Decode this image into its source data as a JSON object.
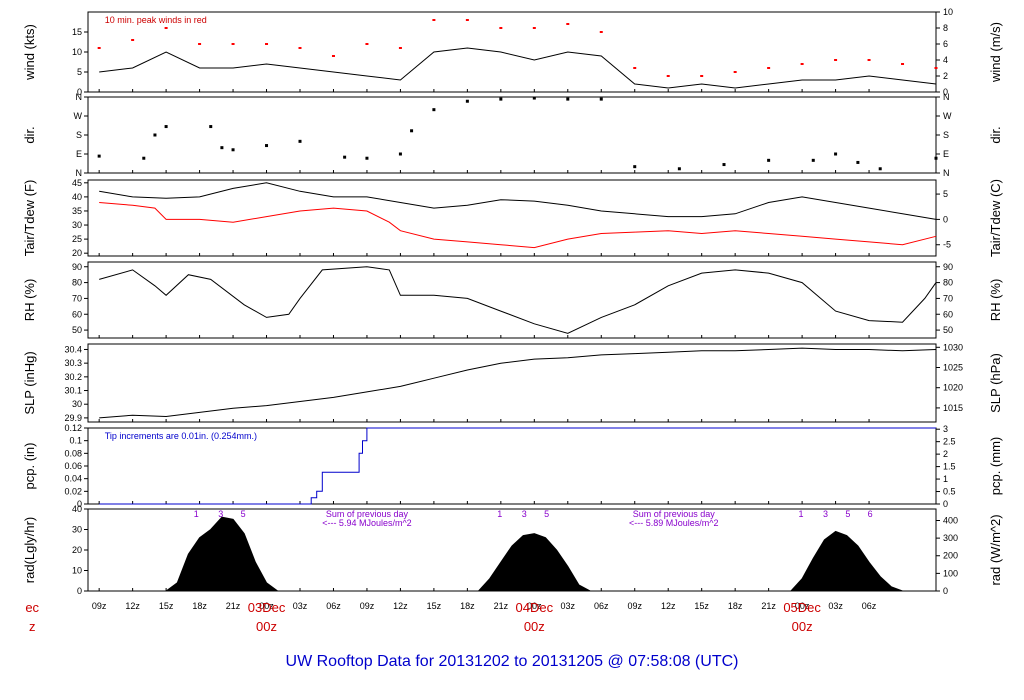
{
  "title": "UW Rooftop Data for 20131202  to  20131205 @ 07:58:08  (UTC)",
  "chart_data": [
    {
      "type": "line",
      "ylabel": "wind (kts)",
      "ylabel_right": "wind (m/s)",
      "annotation": "10 min. peak winds in red",
      "ylim": [
        0,
        20
      ],
      "yticks": [
        0,
        5,
        10,
        15
      ],
      "ylim_right": [
        0,
        10
      ],
      "yticks_right": [
        0,
        2,
        4,
        6,
        8,
        10
      ],
      "series": [
        {
          "name": "10 min. peak winds",
          "color": "#ff0000",
          "x": [
            0,
            3,
            6,
            9,
            12,
            15,
            18,
            21,
            24,
            27,
            30,
            33,
            36,
            39,
            42,
            45,
            48,
            51,
            54,
            57,
            60,
            63,
            66,
            69,
            72,
            75
          ],
          "y": [
            11,
            13,
            16,
            12,
            12,
            12,
            11,
            9,
            12,
            11,
            18,
            18,
            16,
            16,
            17,
            15,
            6,
            4,
            4,
            5,
            6,
            7,
            8,
            8,
            7,
            6
          ]
        },
        {
          "color": "#000000",
          "x": [
            0,
            3,
            6,
            9,
            12,
            15,
            18,
            21,
            24,
            27,
            30,
            33,
            36,
            39,
            42,
            45,
            48,
            51,
            54,
            57,
            60,
            63,
            66,
            69,
            72,
            75
          ],
          "y": [
            5,
            6,
            10,
            6,
            6,
            7,
            6,
            5,
            4,
            3,
            10,
            11,
            10,
            8,
            10,
            9,
            2,
            1,
            2,
            1,
            2,
            3,
            3,
            4,
            3,
            2
          ]
        }
      ]
    },
    {
      "type": "scatter",
      "ylabel": "dir.",
      "ylabel_right": "dir.",
      "ylim": [
        0,
        360
      ],
      "yticks": [
        0,
        90,
        180,
        270,
        360
      ],
      "ytick_labels": [
        "N",
        "E",
        "S",
        "W",
        "N"
      ],
      "series": [
        {
          "color": "#000000",
          "x": [
            0,
            4,
            5,
            6,
            10,
            11,
            12,
            15,
            18,
            22,
            24,
            27,
            28,
            30,
            33,
            36,
            39,
            42,
            45,
            48,
            52,
            56,
            60,
            64,
            66,
            68,
            70,
            75
          ],
          "y": [
            80,
            70,
            180,
            220,
            220,
            120,
            110,
            130,
            150,
            75,
            70,
            90,
            200,
            300,
            340,
            350,
            355,
            350,
            350,
            30,
            20,
            40,
            60,
            60,
            90,
            50,
            20,
            70
          ]
        }
      ]
    },
    {
      "type": "line",
      "ylabel": "Tair/Tdew (F)",
      "ylabel_right": "Tair/Tdew (C)",
      "ylim": [
        19,
        46
      ],
      "yticks": [
        20,
        25,
        30,
        35,
        40,
        45
      ],
      "yticks_right": [
        -5,
        0,
        5
      ],
      "series": [
        {
          "color": "#000000",
          "x": [
            0,
            3,
            6,
            9,
            12,
            15,
            18,
            21,
            24,
            27,
            30,
            33,
            36,
            39,
            42,
            45,
            48,
            51,
            54,
            57,
            60,
            63,
            66,
            69,
            72,
            75
          ],
          "y": [
            42,
            40,
            39.5,
            40,
            43,
            45,
            42,
            40,
            40,
            38,
            36,
            37,
            39,
            38.5,
            37,
            35,
            34,
            33,
            33,
            34,
            38,
            40,
            38,
            36,
            34,
            32
          ]
        },
        {
          "color": "#ff0000",
          "x": [
            0,
            3,
            5,
            6,
            9,
            12,
            15,
            18,
            21,
            24,
            26,
            27,
            30,
            33,
            36,
            39,
            42,
            45,
            48,
            51,
            54,
            57,
            60,
            63,
            66,
            69,
            72,
            75
          ],
          "y": [
            38,
            37,
            36,
            32,
            32,
            31,
            33,
            35,
            36,
            35,
            31,
            28,
            25,
            24,
            23,
            22,
            25,
            27,
            27.5,
            28,
            27,
            28,
            27,
            26,
            25,
            24,
            23,
            26
          ]
        }
      ]
    },
    {
      "type": "line",
      "ylabel": "RH (%)",
      "ylabel_right": "RH (%)",
      "ylim": [
        45,
        93
      ],
      "yticks": [
        50,
        60,
        70,
        80,
        90
      ],
      "series": [
        {
          "color": "#000000",
          "x": [
            0,
            3,
            5,
            6,
            8,
            10,
            13,
            15,
            17,
            18,
            20,
            24,
            26,
            27,
            30,
            33,
            36,
            39,
            42,
            45,
            48,
            51,
            54,
            57,
            60,
            63,
            66,
            69,
            72,
            74,
            75
          ],
          "y": [
            82,
            88,
            78,
            72,
            85,
            82,
            66,
            58,
            60,
            70,
            88,
            90,
            88,
            72,
            72,
            70,
            62,
            54,
            48,
            58,
            66,
            78,
            86,
            88,
            86,
            80,
            62,
            56,
            55,
            70,
            80
          ]
        }
      ]
    },
    {
      "type": "line",
      "ylabel": "SLP (inHg)",
      "ylabel_right": "SLP (hPa)",
      "ylim": [
        29.87,
        30.44
      ],
      "yticks": [
        29.9,
        30.0,
        30.1,
        30.2,
        30.3,
        30.4
      ],
      "yticks_right": [
        1015,
        1020,
        1025,
        1030
      ],
      "series": [
        {
          "color": "#000000",
          "x": [
            0,
            3,
            6,
            9,
            12,
            15,
            18,
            21,
            24,
            27,
            30,
            33,
            36,
            39,
            42,
            45,
            48,
            51,
            54,
            57,
            60,
            63,
            66,
            69,
            72,
            75
          ],
          "y": [
            29.9,
            29.92,
            29.91,
            29.94,
            29.97,
            29.99,
            30.02,
            30.05,
            30.09,
            30.13,
            30.19,
            30.25,
            30.3,
            30.33,
            30.34,
            30.36,
            30.37,
            30.38,
            30.39,
            30.39,
            30.4,
            30.41,
            30.4,
            30.4,
            30.39,
            30.4
          ]
        }
      ]
    },
    {
      "type": "line",
      "ylabel": "pcp. (in)",
      "ylabel_right": "pcp. (mm)",
      "annotation": "Tip increments are 0.01in. (0.254mm.)",
      "ylim": [
        0,
        0.12
      ],
      "yticks": [
        0.0,
        0.02,
        0.04,
        0.06,
        0.08,
        0.1,
        0.12
      ],
      "yticks_right": [
        0,
        0.5,
        1,
        1.5,
        2,
        2.5,
        3
      ],
      "series": [
        {
          "color": "#0000cc",
          "x": [
            0,
            18.5,
            19,
            19.5,
            20,
            23,
            23.3,
            23.6,
            24,
            75
          ],
          "y": [
            0,
            0,
            0.01,
            0.02,
            0.05,
            0.05,
            0.08,
            0.1,
            0.12,
            0.12
          ]
        }
      ]
    },
    {
      "type": "area",
      "ylabel": "rad(Lgly/hr)",
      "ylabel_right": "rad (W/m^2)",
      "ylim": [
        0,
        40
      ],
      "yticks": [
        0,
        10,
        20,
        30,
        40
      ],
      "yticks_right": [
        0,
        100,
        200,
        300,
        400
      ],
      "annotations": [
        "1",
        "3",
        "5",
        "Sum of previous day",
        "<--- 5.94 MJoules/m^2",
        "1",
        "3",
        "5",
        "Sum of previous day",
        "<--- 5.89 MJoules/m^2",
        "1",
        "3",
        "5",
        "6"
      ],
      "series": [
        {
          "color": "#000000",
          "x": [
            6,
            7,
            8,
            9,
            10,
            11,
            12,
            13,
            14,
            15,
            16,
            34,
            35,
            36,
            37,
            38,
            39,
            40,
            41,
            42,
            43,
            44,
            62,
            63,
            64,
            65,
            66,
            67,
            68,
            69,
            70,
            71,
            72
          ],
          "y": [
            0,
            4,
            18,
            26,
            30,
            36,
            35,
            28,
            14,
            4,
            0,
            0,
            6,
            14,
            22,
            27,
            28,
            26,
            20,
            12,
            3,
            0,
            0,
            6,
            16,
            25,
            29,
            27,
            22,
            14,
            7,
            2,
            0
          ]
        }
      ]
    }
  ],
  "x_axis": {
    "xlim": [
      -1,
      75
    ],
    "ticks": [
      {
        "x": 0,
        "label": "09z"
      },
      {
        "x": 3,
        "label": "12z"
      },
      {
        "x": 6,
        "label": "15z"
      },
      {
        "x": 9,
        "label": "18z"
      },
      {
        "x": 12,
        "label": "21z"
      },
      {
        "x": 15,
        "label": "00z"
      },
      {
        "x": 18,
        "label": "03z"
      },
      {
        "x": 21,
        "label": "06z"
      },
      {
        "x": 24,
        "label": "09z"
      },
      {
        "x": 27,
        "label": "12z"
      },
      {
        "x": 30,
        "label": "15z"
      },
      {
        "x": 33,
        "label": "18z"
      },
      {
        "x": 36,
        "label": "21z"
      },
      {
        "x": 39,
        "label": "00z"
      },
      {
        "x": 42,
        "label": "03z"
      },
      {
        "x": 45,
        "label": "06z"
      },
      {
        "x": 48,
        "label": "09z"
      },
      {
        "x": 51,
        "label": "12z"
      },
      {
        "x": 54,
        "label": "15z"
      },
      {
        "x": 57,
        "label": "18z"
      },
      {
        "x": 60,
        "label": "21z"
      },
      {
        "x": 63,
        "label": "00z"
      },
      {
        "x": 66,
        "label": "03z"
      },
      {
        "x": 69,
        "label": "06z"
      }
    ],
    "day_labels": [
      {
        "x": -6,
        "line1": "ec",
        "line2": "z"
      },
      {
        "x": 15,
        "line1": "03Dec",
        "line2": "00z"
      },
      {
        "x": 39,
        "line1": "04Dec",
        "line2": "00z"
      },
      {
        "x": 63,
        "line1": "05Dec",
        "line2": "00z"
      }
    ]
  }
}
